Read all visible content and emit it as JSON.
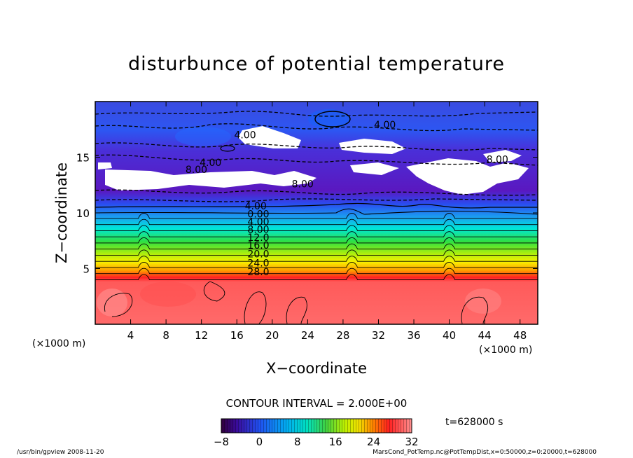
{
  "title": "disturbunce of potential temperature",
  "xlabel": "X−coordinate",
  "ylabel": "Z−coordinate",
  "x_unit_left": "(×1000 m)",
  "x_unit_right": "(×1000 m)",
  "contour_interval": "CONTOUR INTERVAL = 2.000E+00",
  "time_label": "t=628000 s",
  "footer_left": "/usr/bin/gpview   2008-11-20",
  "footer_right": "MarsCond_PotTemp.nc@PotTempDist,x=0:50000,z=0:20000,t=628000",
  "colors": {
    "deep_purple": "#4b0082",
    "blue": "#2a5bf0",
    "cyan": "#00e0e0",
    "green": "#40d040",
    "yellow": "#f0f000",
    "orange": "#ff8c00",
    "red": "#ff2020",
    "salmon": "#ff6464"
  },
  "chart_data": {
    "type": "heatmap",
    "title": "disturbunce of potential temperature",
    "xlabel": "X−coordinate",
    "ylabel": "Z−coordinate",
    "xlim": [
      0,
      50
    ],
    "ylim": [
      0,
      20
    ],
    "x_ticks": [
      4,
      8,
      12,
      16,
      20,
      24,
      28,
      32,
      36,
      40,
      44,
      48
    ],
    "y_ticks": [
      5,
      10,
      15
    ],
    "contour_labels": [
      {
        "text": "4.00",
        "x": 16.9,
        "z": 10.3
      },
      {
        "text": "0.00",
        "x": 17.2,
        "z": 9.6
      },
      {
        "text": "4.00",
        "x": 17.2,
        "z": 8.9
      },
      {
        "text": "8.00",
        "x": 17.2,
        "z": 8.2
      },
      {
        "text": "12.0",
        "x": 17.2,
        "z": 7.5
      },
      {
        "text": "16.0",
        "x": 17.2,
        "z": 6.8
      },
      {
        "text": "20.0",
        "x": 17.2,
        "z": 6.0
      },
      {
        "text": "24.0",
        "x": 17.2,
        "z": 5.2
      },
      {
        "text": "28.0",
        "x": 17.2,
        "z": 4.4
      },
      {
        "text": "8.00",
        "x": 22.2,
        "z": 12.3
      },
      {
        "text": "8.00",
        "x": 10.2,
        "z": 13.6
      },
      {
        "text": "4.00",
        "x": 11.8,
        "z": 14.2
      },
      {
        "text": "4.00",
        "x": 15.7,
        "z": 16.7
      },
      {
        "text": "4.00",
        "x": 31.5,
        "z": 17.6
      },
      {
        "text": "8.00",
        "x": 44.2,
        "z": 14.5
      }
    ],
    "colorbar": {
      "min": -8,
      "max": 32,
      "ticks": [
        -8,
        0,
        8,
        16,
        24,
        32
      ],
      "interval": 2
    }
  }
}
